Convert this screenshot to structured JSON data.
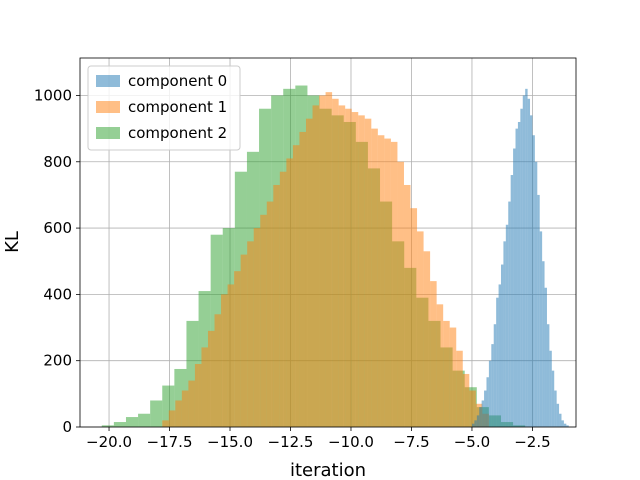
{
  "chart_data": {
    "type": "bar",
    "subtype": "histogram",
    "xlabel": "iteration",
    "ylabel": "KL",
    "xlim": [
      -21.2,
      -0.7
    ],
    "ylim": [
      0,
      1113
    ],
    "xticks": [
      -20.0,
      -17.5,
      -15.0,
      -12.5,
      -10.0,
      -7.5,
      -5.0,
      -2.5
    ],
    "xtick_labels": [
      "−20.0",
      "−17.5",
      "−15.0",
      "−12.5",
      "−10.0",
      "−7.5",
      "−5.0",
      "−2.5"
    ],
    "yticks": [
      0,
      200,
      400,
      600,
      800,
      1000
    ],
    "ytick_labels": [
      "0",
      "200",
      "400",
      "600",
      "800",
      "1000"
    ],
    "grid": true,
    "legend_position": "top-left",
    "alpha": 0.5,
    "series": [
      {
        "name": "component 2",
        "color": "#2ca02c",
        "bin_start": -20.3,
        "bin_width": 0.5,
        "values": [
          5,
          15,
          30,
          40,
          80,
          125,
          175,
          320,
          410,
          580,
          600,
          770,
          830,
          960,
          1000,
          1020,
          1030,
          1000,
          960,
          940,
          920,
          860,
          780,
          680,
          560,
          480,
          390,
          320,
          240,
          170,
          120,
          60,
          35,
          15,
          5
        ]
      },
      {
        "name": "component 1",
        "color": "#ff7f0e",
        "bin_start": -17.8,
        "bin_width": 0.27,
        "values": [
          20,
          50,
          80,
          110,
          140,
          190,
          240,
          290,
          340,
          400,
          430,
          470,
          520,
          560,
          600,
          640,
          680,
          730,
          770,
          810,
          850,
          890,
          930,
          970,
          1000,
          1010,
          990,
          970,
          960,
          950,
          940,
          930,
          900,
          880,
          870,
          860,
          800,
          730,
          660,
          590,
          530,
          440,
          370,
          320,
          300,
          230,
          160,
          110,
          70,
          40
        ]
      },
      {
        "name": "component 0",
        "color": "#1f77b4",
        "bin_start": -5.0,
        "bin_width": 0.1,
        "values": [
          10,
          20,
          35,
          60,
          80,
          110,
          150,
          200,
          250,
          310,
          390,
          430,
          490,
          560,
          610,
          680,
          760,
          840,
          900,
          920,
          960,
          1000,
          1020,
          990,
          940,
          880,
          800,
          700,
          590,
          500,
          420,
          310,
          230,
          170,
          110,
          70,
          40,
          20,
          10,
          5
        ]
      }
    ],
    "legend_order": [
      "component 0",
      "component 1",
      "component 2"
    ]
  }
}
